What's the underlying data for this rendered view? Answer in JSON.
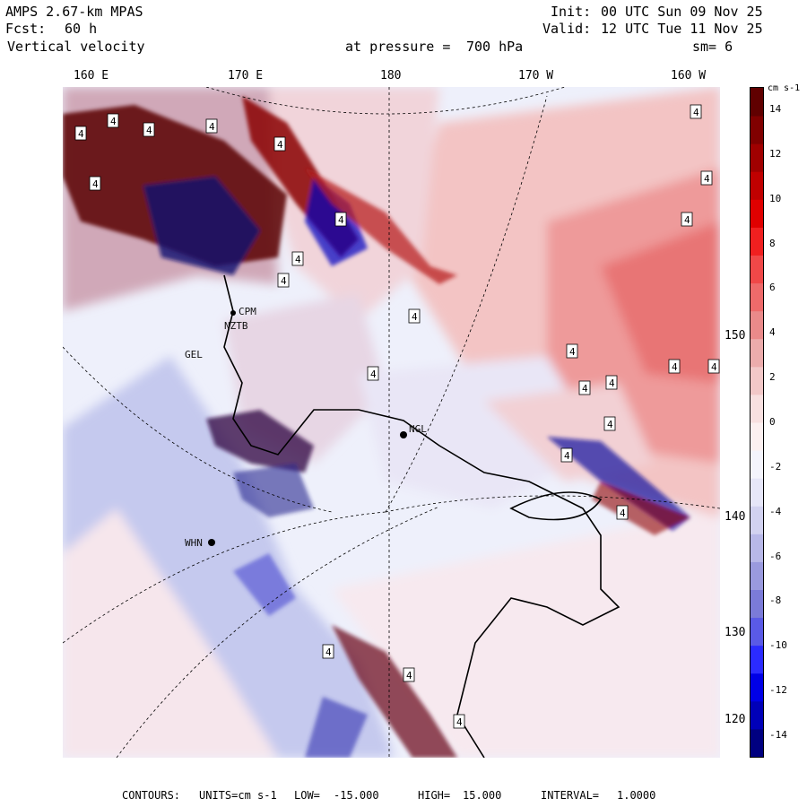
{
  "header": {
    "model": "AMPS 2.67-km MPAS",
    "forecast_label": "Fcst:",
    "forecast_hours": "60 h",
    "field": "Vertical velocity",
    "level_prefix": "at pressure =",
    "level_value": "700 hPa",
    "init_label": "Init:",
    "init_time": "00 UTC Sun 09 Nov 25",
    "valid_label": "Valid:",
    "valid_time": "12 UTC Tue 11 Nov 25",
    "smoothing": "sm= 6"
  },
  "longitude_labels": [
    "160 E",
    "170 E",
    "180",
    "170 W",
    "160 W"
  ],
  "latitude_labels": [
    "150 W",
    "140 W",
    "130 W",
    "120 W"
  ],
  "colorbar": {
    "units": "cm s-1",
    "ticks": [
      "14",
      "12",
      "10",
      "8",
      "6",
      "4",
      "2",
      "0",
      "-2",
      "-4",
      "-6",
      "-8",
      "-10",
      "-12",
      "-14"
    ],
    "min": -15,
    "max": 15,
    "colors": [
      "#000080",
      "#0000b8",
      "#0000e6",
      "#2b2bff",
      "#5a5ae6",
      "#7b7bd8",
      "#9a9ade",
      "#b8b8e8",
      "#d2d2f0",
      "#e6e6f8",
      "#f4f4fc",
      "#fcf0f0",
      "#f8e0e0",
      "#f2c8c8",
      "#ecacac",
      "#ea8a8a",
      "#ee6a6a",
      "#f04848",
      "#f02020",
      "#e00000",
      "#c00000",
      "#a00000",
      "#800000",
      "#600000"
    ]
  },
  "stations": [
    {
      "code": "NGL"
    },
    {
      "code": "WHN"
    },
    {
      "code": "CPM"
    },
    {
      "code": "NZTB"
    },
    {
      "code": "GEL"
    }
  ],
  "footer": {
    "contours_label": "CONTOURS:",
    "units_label": "UNITS=cm s-1",
    "low_label": "LOW=",
    "low_value": "-15.000",
    "high_label": "HIGH=",
    "high_value": "15.000",
    "interval_label": "INTERVAL=",
    "interval_value": "1.0000"
  },
  "map_annotation_label": "4",
  "colors": {
    "ocean": "#eef0fb",
    "positive_region": "#f2b8b8",
    "strong_positive": "#e85a5a",
    "negative_region": "#a8aee6",
    "strong_negative": "#1a1ae6",
    "very_strong_positive": "#7a0000"
  }
}
